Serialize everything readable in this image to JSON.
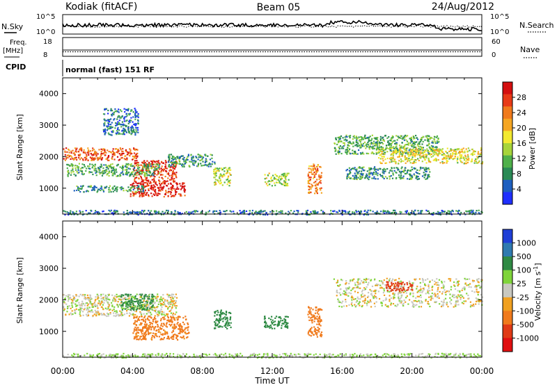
{
  "header": {
    "station": "Kodiak (fitACF)",
    "beam": "Beam 05",
    "date": "24/Aug/2012"
  },
  "params": {
    "nsky_label": "N.Sky",
    "nsky_ticks": [
      "10^5",
      "10^0"
    ],
    "nsearch_label": "N.Search",
    "nsearch_ticks": [
      "10^5",
      "10^0"
    ],
    "freq_label": "Freq.",
    "freq_unit": "[MHz]",
    "freq_ticks": [
      "18",
      "8"
    ],
    "nave_label": "Nave",
    "nave_ticks": [
      "60",
      "0"
    ],
    "cpid_label": "CPID",
    "cpid_value": "normal (fast) 151 RF"
  },
  "chart_data": [
    {
      "type": "heatmap",
      "panel": "power",
      "ylabel": "Slant Range [km]",
      "xlabel": "",
      "xlim_hours": [
        0,
        24
      ],
      "ylim_km": [
        180,
        4500
      ],
      "yticks": [
        1000,
        2000,
        3000,
        4000
      ],
      "colorbar": {
        "label": "Power [dB]",
        "ticks": [
          "28",
          "24",
          "20",
          "16",
          "12",
          "8",
          "4"
        ],
        "range": [
          0,
          30
        ],
        "colors": [
          "#1f2fff",
          "#1e5fbf",
          "#2a8a55",
          "#4fb04a",
          "#a7d43a",
          "#f2e930",
          "#f5a623",
          "#f07a1c",
          "#e83a17",
          "#d40f10"
        ]
      },
      "echo_regions": [
        {
          "t0": 0.0,
          "t1": 4.3,
          "r0": 1900,
          "r1": 2300,
          "level": 24
        },
        {
          "t0": 4.0,
          "t1": 6.5,
          "r0": 1200,
          "r1": 1900,
          "level": 26
        },
        {
          "t0": 3.8,
          "t1": 7.0,
          "r0": 750,
          "r1": 1200,
          "level": 28
        },
        {
          "t0": 0.2,
          "t1": 5.5,
          "r0": 1400,
          "r1": 1800,
          "level": 10
        },
        {
          "t0": 0.6,
          "t1": 4.6,
          "r0": 900,
          "r1": 1100,
          "level": 8
        },
        {
          "t0": 2.3,
          "t1": 4.3,
          "r0": 2700,
          "r1": 3550,
          "level": 6
        },
        {
          "t0": 6.0,
          "t1": 8.7,
          "r0": 1700,
          "r1": 2100,
          "level": 8
        },
        {
          "t0": 8.6,
          "t1": 9.6,
          "r0": 1100,
          "r1": 1700,
          "level": 14
        },
        {
          "t0": 11.5,
          "t1": 12.9,
          "r0": 1100,
          "r1": 1500,
          "level": 14
        },
        {
          "t0": 14.0,
          "t1": 14.8,
          "r0": 850,
          "r1": 1800,
          "level": 22
        },
        {
          "t0": 15.5,
          "t1": 21.5,
          "r0": 2100,
          "r1": 2700,
          "level": 10
        },
        {
          "t0": 16.2,
          "t1": 21.0,
          "r0": 1300,
          "r1": 1700,
          "level": 8
        },
        {
          "t0": 18.0,
          "t1": 24.0,
          "r0": 1800,
          "r1": 2300,
          "level": 16
        },
        {
          "t0": 0.0,
          "t1": 24.0,
          "r0": 180,
          "r1": 320,
          "level": 6
        }
      ]
    },
    {
      "type": "heatmap",
      "panel": "velocity",
      "ylabel": "Slant Range [km]",
      "xlabel": "Time UT",
      "xlim_hours": [
        0,
        24
      ],
      "ylim_km": [
        180,
        4500
      ],
      "yticks": [
        1000,
        2000,
        3000,
        4000
      ],
      "xticks": [
        "00:00",
        "04:00",
        "08:00",
        "12:00",
        "16:00",
        "20:00",
        "00:00"
      ],
      "colorbar": {
        "label": "Velocity [m s-1]",
        "label_main": "Velocity [m s",
        "label_exp": "-1",
        "label_end": "]",
        "ticks": [
          "1000",
          "500",
          "100",
          "25",
          "-25",
          "-100",
          "-500",
          "-1000"
        ],
        "colors": [
          "#1f3fd6",
          "#2f7ab0",
          "#2f8a44",
          "#7fd43a",
          "#c8c8c0",
          "#f0a020",
          "#f07a1c",
          "#e03a16",
          "#e00f10"
        ]
      },
      "echo_regions": [
        {
          "t0": 0.0,
          "t1": 6.5,
          "r0": 1500,
          "r1": 2200,
          "level": 0
        },
        {
          "t0": 4.0,
          "t1": 7.2,
          "r0": 750,
          "r1": 1500,
          "level": -150
        },
        {
          "t0": 3.3,
          "t1": 5.2,
          "r0": 1700,
          "r1": 2200,
          "level": 150
        },
        {
          "t0": 8.6,
          "t1": 9.6,
          "r0": 1100,
          "r1": 1700,
          "level": 300
        },
        {
          "t0": 11.5,
          "t1": 12.9,
          "r0": 1100,
          "r1": 1500,
          "level": 300
        },
        {
          "t0": 14.0,
          "t1": 14.8,
          "r0": 850,
          "r1": 1800,
          "level": -300
        },
        {
          "t0": 15.5,
          "t1": 24.0,
          "r0": 1800,
          "r1": 2700,
          "level": 0
        },
        {
          "t0": 18.5,
          "t1": 20.0,
          "r0": 2300,
          "r1": 2600,
          "level": -600
        },
        {
          "t0": 0.0,
          "t1": 24.0,
          "r0": 180,
          "r1": 320,
          "level": 40
        }
      ]
    }
  ]
}
